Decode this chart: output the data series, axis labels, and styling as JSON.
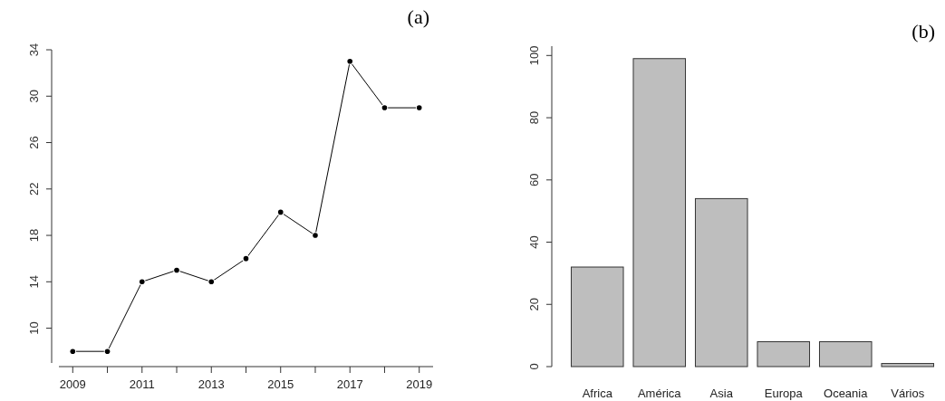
{
  "chart_data": [
    {
      "type": "line",
      "title": "(a)",
      "x": [
        2009,
        2010,
        2011,
        2012,
        2013,
        2014,
        2015,
        2016,
        2017,
        2018,
        2019
      ],
      "values": [
        8,
        8,
        14,
        15,
        14,
        16,
        20,
        18,
        33,
        29,
        29
      ],
      "color": "#000000",
      "marker": "circle",
      "xlim": [
        2008.6,
        2019.4
      ],
      "xticks": [
        2009,
        {
          "value": 2010,
          "label": null
        },
        2011,
        {
          "value": 2012,
          "label": null
        },
        2013,
        {
          "value": 2014,
          "label": null
        },
        2015,
        {
          "value": 2016,
          "label": null
        },
        2017,
        {
          "value": 2018,
          "label": null
        },
        2019
      ],
      "ylim": [
        7,
        34
      ],
      "yticks": [
        10,
        14,
        18,
        22,
        26,
        30,
        34
      ]
    },
    {
      "type": "bar",
      "title": "(b)",
      "categories": [
        "Africa",
        "América",
        "Asia",
        "Europa",
        "Oceania",
        "Vários"
      ],
      "values": [
        32,
        99,
        54,
        8,
        8,
        1
      ],
      "color": "#bebebe",
      "ylim": [
        0,
        103
      ],
      "yticks": [
        0,
        20,
        40,
        60,
        80,
        100
      ]
    }
  ]
}
